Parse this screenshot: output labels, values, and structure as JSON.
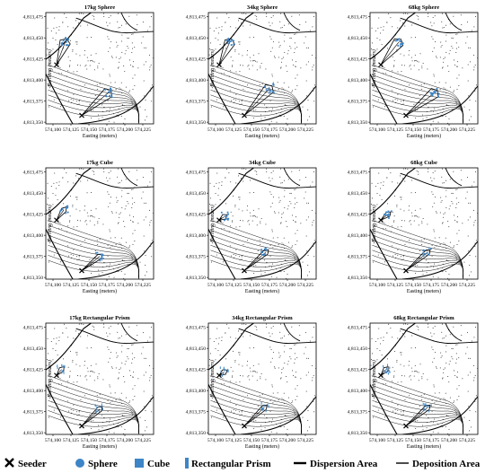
{
  "legend": {
    "items": [
      {
        "label": "Seeder",
        "icon": "x-marker-icon"
      },
      {
        "label": "Sphere",
        "icon": "circle-icon",
        "color": "#3d85c6"
      },
      {
        "label": "Cube",
        "icon": "square-icon",
        "color": "#3d85c6"
      },
      {
        "label": "Rectangular Prism",
        "icon": "bar-icon",
        "color": "#3d85c6"
      },
      {
        "label": "Dispersion Area",
        "icon": "thick-line-icon"
      },
      {
        "label": "Deposition Area",
        "icon": "thin-line-icon"
      }
    ]
  },
  "chart_data": [
    {
      "type": "scatter",
      "title": "17kg Sphere",
      "xlabel": "Easting (meters)",
      "ylabel": "Northing (meters)",
      "xlim": [
        574090,
        574240
      ],
      "ylim": [
        4813348,
        4813480
      ],
      "xticks": [
        "574,100",
        "574,125",
        "574,150",
        "574,175",
        "574,200",
        "574,225"
      ],
      "yticks": [
        "4,813,350",
        "4,813,375",
        "4,813,400",
        "4,813,425",
        "4,813,450",
        "4,813,475"
      ],
      "marker": "sphere",
      "seeders": [
        [
          574105,
          4813418
        ],
        [
          574140,
          4813358
        ]
      ],
      "deposition_clusters": [
        [
          574117,
          4813445
        ],
        [
          574177,
          4813385
        ]
      ]
    },
    {
      "type": "scatter",
      "title": "34kg Sphere",
      "xlabel": "Easting (meters)",
      "ylabel": "Northing (meters)",
      "xlim": [
        574090,
        574240
      ],
      "ylim": [
        4813348,
        4813480
      ],
      "xticks": [
        "574,100",
        "574,125",
        "574,150",
        "574,175",
        "574,200",
        "574,225"
      ],
      "yticks": [
        "4,813,350",
        "4,813,375",
        "4,813,400",
        "4,813,425",
        "4,813,450",
        "4,813,475"
      ],
      "marker": "sphere",
      "seeders": [
        [
          574105,
          4813418
        ],
        [
          574140,
          4813358
        ]
      ],
      "deposition_clusters": [
        [
          574120,
          4813445
        ],
        [
          574175,
          4813390
        ]
      ]
    },
    {
      "type": "scatter",
      "title": "68kg Sphere",
      "xlabel": "Easting (meters)",
      "ylabel": "Northing (meters)",
      "xlim": [
        574090,
        574240
      ],
      "ylim": [
        4813348,
        4813480
      ],
      "xticks": [
        "574,100",
        "574,125",
        "574,150",
        "574,175",
        "574,200",
        "574,225"
      ],
      "yticks": [
        "4,813,350",
        "4,813,375",
        "4,813,400",
        "4,813,425",
        "4,813,450",
        "4,813,475"
      ],
      "marker": "sphere",
      "seeders": [
        [
          574105,
          4813418
        ],
        [
          574140,
          4813358
        ]
      ],
      "deposition_clusters": [
        [
          574130,
          4813445
        ],
        [
          574180,
          4813385
        ]
      ]
    },
    {
      "type": "scatter",
      "title": "17kg Cube",
      "xlabel": "Easting (meters)",
      "ylabel": "Northing (meters)",
      "xlim": [
        574090,
        574240
      ],
      "ylim": [
        4813348,
        4813480
      ],
      "xticks": [
        "574,100",
        "574,125",
        "574,150",
        "574,175",
        "574,200",
        "574,225"
      ],
      "yticks": [
        "4,813,350",
        "4,813,375",
        "4,813,400",
        "4,813,425",
        "4,813,450",
        "4,813,475"
      ],
      "marker": "cube",
      "seeders": [
        [
          574105,
          4813418
        ],
        [
          574140,
          4813358
        ]
      ],
      "deposition_clusters": [
        [
          574115,
          4813430
        ],
        [
          574165,
          4813375
        ]
      ]
    },
    {
      "type": "scatter",
      "title": "34kg Cube",
      "xlabel": "Easting (meters)",
      "ylabel": "Northing (meters)",
      "xlim": [
        574090,
        574240
      ],
      "ylim": [
        4813348,
        4813480
      ],
      "xticks": [
        "574,100",
        "574,125",
        "574,150",
        "574,175",
        "574,200",
        "574,225"
      ],
      "yticks": [
        "4,813,350",
        "4,813,375",
        "4,813,400",
        "4,813,425",
        "4,813,450",
        "4,813,475"
      ],
      "marker": "cube",
      "seeders": [
        [
          574105,
          4813418
        ],
        [
          574140,
          4813358
        ]
      ],
      "deposition_clusters": [
        [
          574112,
          4813422
        ],
        [
          574170,
          4813380
        ]
      ]
    },
    {
      "type": "scatter",
      "title": "68kg Cube",
      "xlabel": "Easting (meters)",
      "ylabel": "Northing (meters)",
      "xlim": [
        574090,
        574240
      ],
      "ylim": [
        4813348,
        4813480
      ],
      "xticks": [
        "574,100",
        "574,125",
        "574,150",
        "574,175",
        "574,200",
        "574,225"
      ],
      "yticks": [
        "4,813,350",
        "4,813,375",
        "4,813,400",
        "4,813,425",
        "4,813,450",
        "4,813,475"
      ],
      "marker": "cube",
      "seeders": [
        [
          574105,
          4813418
        ],
        [
          574140,
          4813358
        ]
      ],
      "deposition_clusters": [
        [
          574115,
          4813425
        ],
        [
          574170,
          4813380
        ]
      ]
    },
    {
      "type": "scatter",
      "title": "17kg Rectangular Prism",
      "xlabel": "Easting (meters)",
      "ylabel": "Northing (meters)",
      "xlim": [
        574090,
        574240
      ],
      "ylim": [
        4813348,
        4813480
      ],
      "xticks": [
        "574,100",
        "574,125",
        "574,150",
        "574,175",
        "574,200",
        "574,225"
      ],
      "yticks": [
        "4,813,350",
        "4,813,375",
        "4,813,400",
        "4,813,425",
        "4,813,450",
        "4,813,475"
      ],
      "marker": "prism",
      "seeders": [
        [
          574105,
          4813418
        ],
        [
          574140,
          4813358
        ]
      ],
      "deposition_clusters": [
        [
          574112,
          4813425
        ],
        [
          574165,
          4813378
        ]
      ]
    },
    {
      "type": "scatter",
      "title": "34kg Rectangular Prism",
      "xlabel": "Easting (meters)",
      "ylabel": "Northing (meters)",
      "xlim": [
        574090,
        574240
      ],
      "ylim": [
        4813348,
        4813480
      ],
      "xticks": [
        "574,100",
        "574,125",
        "574,150",
        "574,175",
        "574,200",
        "574,225"
      ],
      "yticks": [
        "4,813,350",
        "4,813,375",
        "4,813,400",
        "4,813,425",
        "4,813,450",
        "4,813,475"
      ],
      "marker": "prism",
      "seeders": [
        [
          574105,
          4813418
        ],
        [
          574140,
          4813358
        ]
      ],
      "deposition_clusters": [
        [
          574112,
          4813422
        ],
        [
          574168,
          4813380
        ]
      ]
    },
    {
      "type": "scatter",
      "title": "68kg Rectangular Prism",
      "xlabel": "Easting (meters)",
      "ylabel": "Northing (meters)",
      "xlim": [
        574090,
        574240
      ],
      "ylim": [
        4813348,
        4813480
      ],
      "xticks": [
        "574,100",
        "574,125",
        "574,150",
        "574,175",
        "574,200",
        "574,225"
      ],
      "yticks": [
        "4,813,350",
        "4,813,375",
        "4,813,400",
        "4,813,425",
        "4,813,450",
        "4,813,475"
      ],
      "marker": "prism",
      "seeders": [
        [
          574105,
          4813418
        ],
        [
          574140,
          4813358
        ]
      ],
      "deposition_clusters": [
        [
          574112,
          4813425
        ],
        [
          574170,
          4813380
        ]
      ]
    }
  ]
}
